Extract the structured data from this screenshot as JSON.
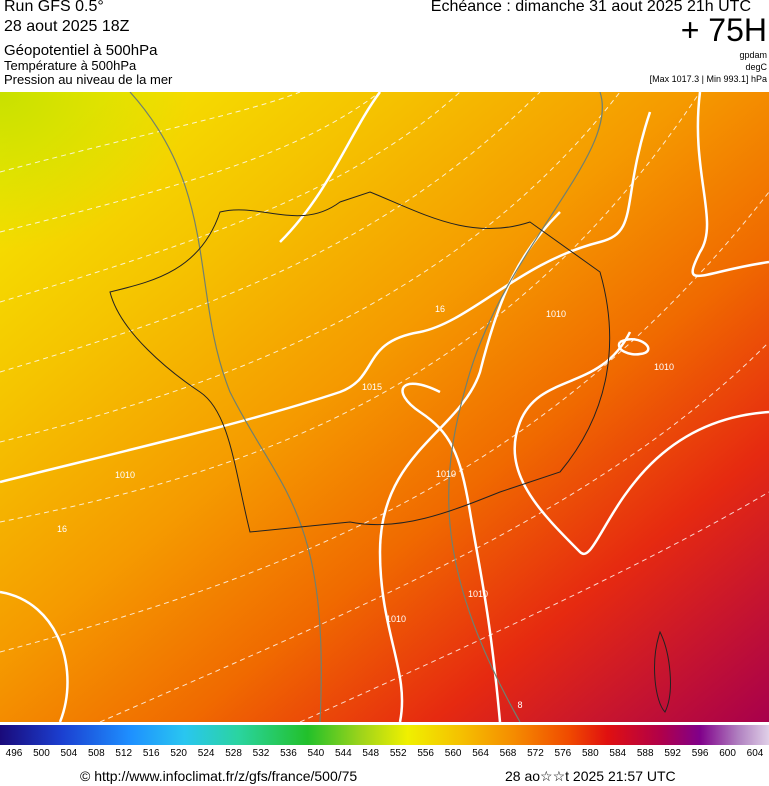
{
  "header": {
    "run": "Run GFS 0.5°",
    "date": "28 aout 2025 18Z",
    "field1": "Géopotentiel à 500hPa",
    "field2": "Température à 500hPa",
    "field3": "Pression au niveau de la mer",
    "echeance": "Echéance : dimanche 31 aout 2025 21h UTC",
    "lead": "+ 75H",
    "unit1": "gpdam",
    "unit2": "degC",
    "minmax": "[Max 1017.3 | Min 993.1] hPa"
  },
  "map": {
    "contour_labels": [
      "1010",
      "1015",
      "1010",
      "1010",
      "1010",
      "1010",
      "1010",
      "1010",
      "16",
      "16",
      "8"
    ]
  },
  "legend": {
    "labels": [
      496,
      500,
      504,
      508,
      512,
      516,
      520,
      524,
      528,
      532,
      536,
      540,
      544,
      548,
      552,
      556,
      560,
      564,
      568,
      572,
      576,
      580,
      584,
      588,
      592,
      596,
      600,
      604
    ]
  },
  "footer": {
    "url": "© http://www.infoclimat.fr/z/gfs/france/500/75",
    "stamp": "28 ao☆☆t 2025 21:57 UTC"
  }
}
